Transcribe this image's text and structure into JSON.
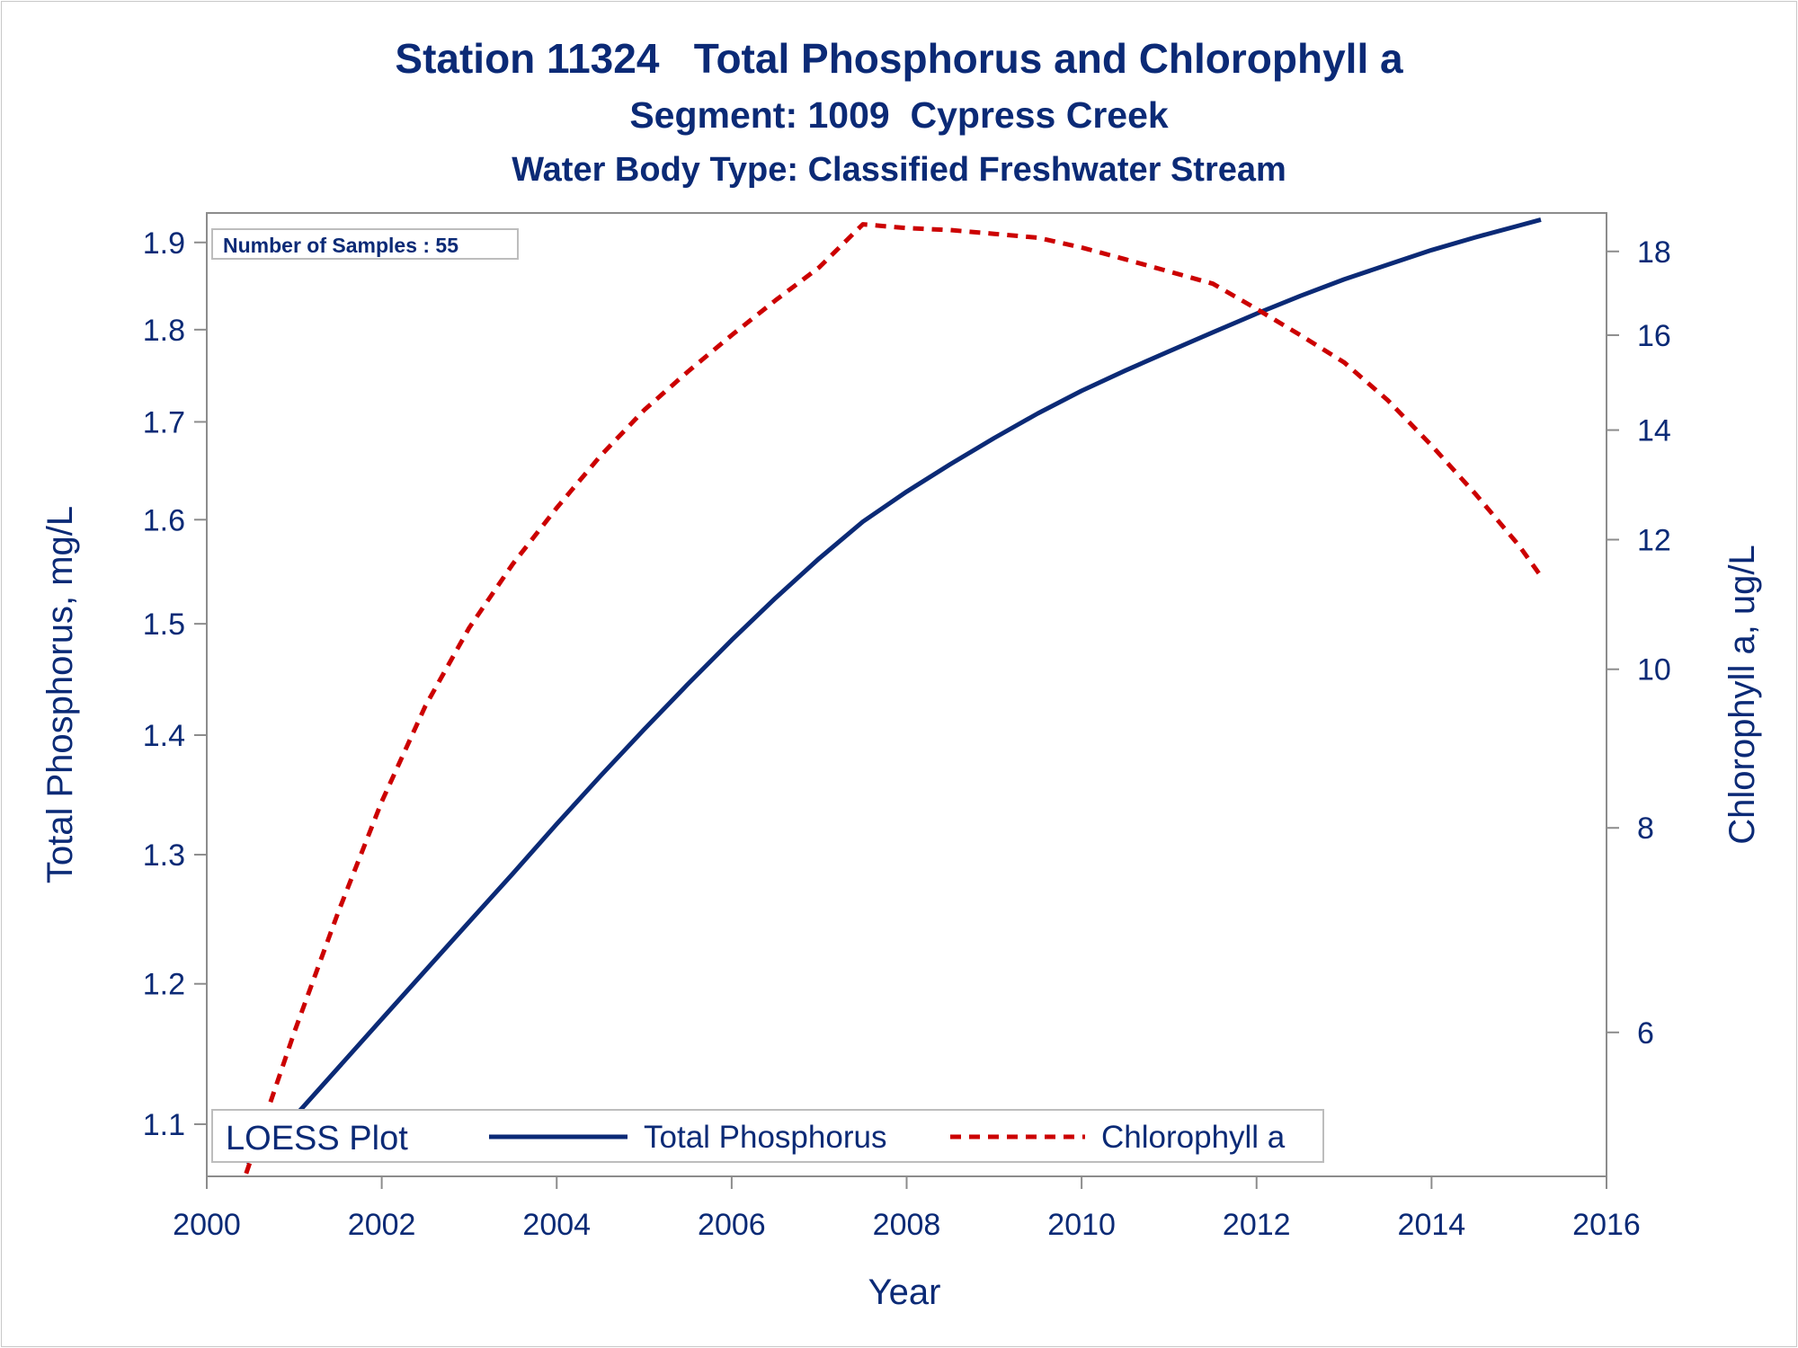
{
  "chart_data": {
    "type": "line",
    "title": "Station 11324   Total Phosphorus and Chlorophyll a",
    "subtitle": "Segment: 1009  Cypress Creek",
    "subtitle2": "Water Body Type: Classified Freshwater Stream",
    "xlabel": "Year",
    "ylabel": "Total Phosphorus, mg/L",
    "y2label": "Chlorophyll a, ug/L",
    "xlim": [
      2000,
      2016
    ],
    "ylim": [
      1.065,
      1.935
    ],
    "y2lim": [
      4.9,
      19.0
    ],
    "y_scale": "log",
    "y2_scale": "log",
    "x_ticks": [
      2000,
      2002,
      2004,
      2006,
      2008,
      2010,
      2012,
      2014,
      2016
    ],
    "y_ticks": [
      1.1,
      1.2,
      1.3,
      1.4,
      1.5,
      1.6,
      1.7,
      1.8,
      1.9
    ],
    "y2_ticks": [
      6,
      8,
      10,
      12,
      14,
      16,
      18
    ],
    "annotation": "Number of Samples : 55",
    "legend": {
      "title": "LOESS Plot",
      "placement": "bottom-left inside"
    },
    "series": [
      {
        "name": "Total Phosphorus",
        "axis": "left",
        "color": "#0b2a76",
        "style": "solid",
        "x": [
          2000.45,
          2001.0,
          2001.5,
          2002.0,
          2002.5,
          2003.0,
          2003.5,
          2004.0,
          2004.5,
          2005.0,
          2005.5,
          2006.0,
          2006.5,
          2007.0,
          2007.5,
          2008.0,
          2008.5,
          2009.0,
          2009.5,
          2010.0,
          2010.5,
          2011.0,
          2011.5,
          2012.0,
          2012.5,
          2013.0,
          2013.5,
          2014.0,
          2014.5,
          2015.0,
          2015.25
        ],
        "values": [
          1.074,
          1.105,
          1.139,
          1.174,
          1.21,
          1.247,
          1.285,
          1.325,
          1.365,
          1.405,
          1.445,
          1.485,
          1.524,
          1.562,
          1.598,
          1.628,
          1.656,
          1.683,
          1.709,
          1.733,
          1.755,
          1.776,
          1.797,
          1.818,
          1.838,
          1.857,
          1.874,
          1.891,
          1.906,
          1.92,
          1.927
        ]
      },
      {
        "name": "Chlorophyll a",
        "axis": "right",
        "color": "#cc0000",
        "style": "dashed",
        "x": [
          2000.45,
          2001.0,
          2001.5,
          2002.0,
          2002.5,
          2003.0,
          2003.5,
          2004.0,
          2004.5,
          2005.0,
          2005.5,
          2006.0,
          2006.5,
          2007.0,
          2007.5,
          2008.0,
          2008.5,
          2009.0,
          2009.5,
          2010.0,
          2010.5,
          2011.0,
          2011.5,
          2012.0,
          2012.5,
          2013.0,
          2013.5,
          2014.0,
          2014.5,
          2015.0,
          2015.25
        ],
        "values": [
          4.92,
          6.0,
          7.1,
          8.3,
          9.5,
          10.6,
          11.6,
          12.55,
          13.5,
          14.4,
          15.2,
          16.0,
          16.8,
          17.6,
          18.7,
          18.6,
          18.55,
          18.45,
          18.35,
          18.1,
          17.8,
          17.5,
          17.2,
          16.6,
          16.0,
          15.4,
          14.6,
          13.7,
          12.8,
          11.9,
          11.4
        ]
      }
    ]
  }
}
